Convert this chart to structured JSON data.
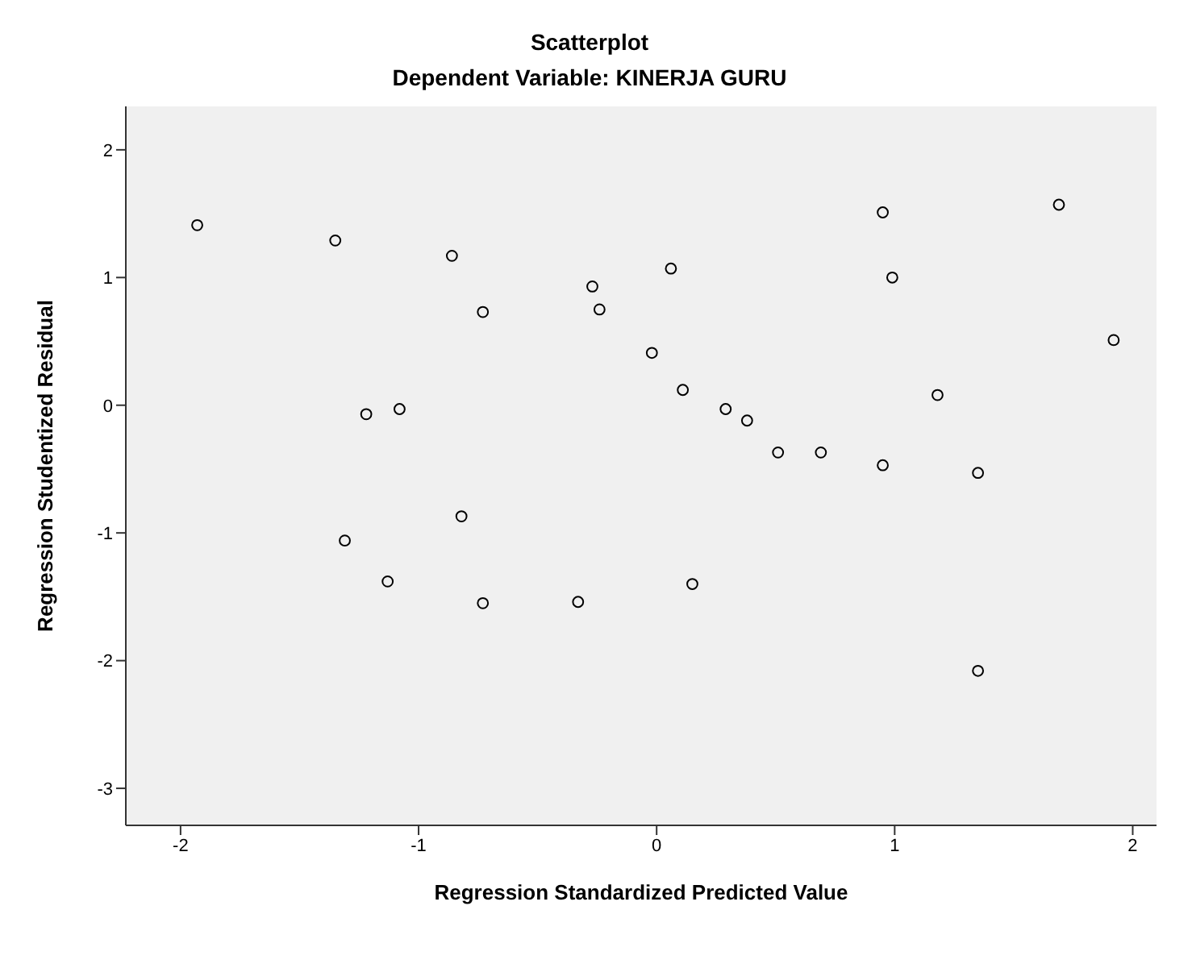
{
  "chart_data": {
    "type": "scatter",
    "title": "Scatterplot",
    "subtitle": "Dependent Variable: KINERJA GURU",
    "xlabel": "Regression Standardized Predicted Value",
    "ylabel": "Regression Studentized Residual",
    "x": [
      -1.93,
      -1.35,
      -0.86,
      -0.73,
      -0.27,
      -0.24,
      0.06,
      -0.02,
      0.11,
      0.95,
      0.99,
      1.69,
      1.92,
      -1.22,
      -1.08,
      0.29,
      0.38,
      0.51,
      0.69,
      1.18,
      0.95,
      1.35,
      -1.31,
      -0.82,
      -1.13,
      -0.73,
      -0.33,
      0.15,
      1.35
    ],
    "series": [
      {
        "color": "#000000",
        "values": [
          1.41,
          1.29,
          1.17,
          0.73,
          0.93,
          0.75,
          1.07,
          0.41,
          0.12,
          1.51,
          1.0,
          1.57,
          0.51,
          -0.07,
          -0.03,
          -0.03,
          -0.12,
          -0.37,
          -0.37,
          0.08,
          -0.47,
          -0.53,
          -1.06,
          -0.87,
          -1.38,
          -1.55,
          -1.54,
          -1.4,
          -2.08
        ]
      }
    ],
    "xlim": [
      -2.23,
      2.1
    ],
    "xticks": [
      -2,
      -1,
      0,
      1,
      2
    ],
    "ylim": [
      -3.29,
      2.34
    ],
    "yticks": [
      -3,
      -2,
      -1,
      0,
      1,
      2
    ],
    "marker": "circle"
  }
}
